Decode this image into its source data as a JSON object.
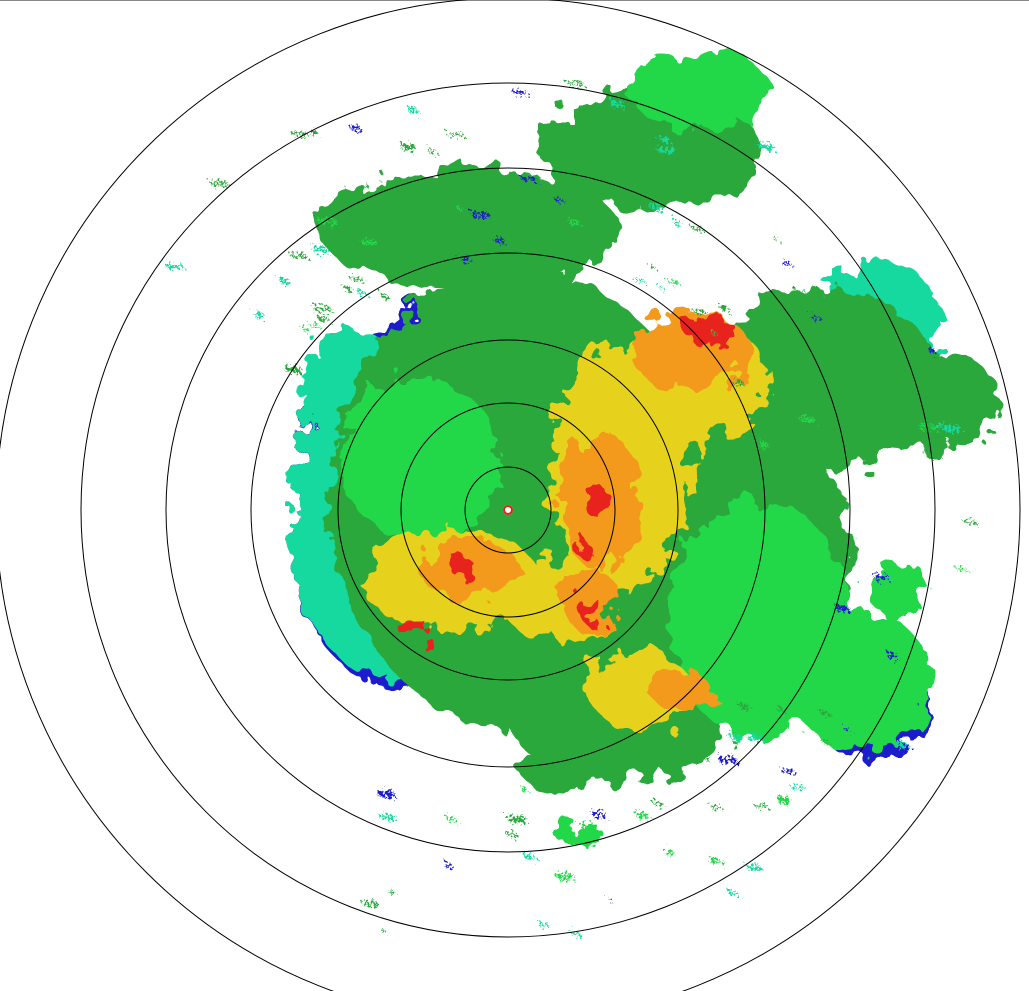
{
  "radar": {
    "center_marker_color": "#ffffff",
    "ring_color": "#000000",
    "palette": {
      "weak_blue": "#1a1acc",
      "cyan": "#19d9a0",
      "light_green": "#22d84a",
      "green": "#2aa83a",
      "yellow": "#e6d21a",
      "orange": "#f39a1a",
      "red": "#e8201a"
    }
  }
}
